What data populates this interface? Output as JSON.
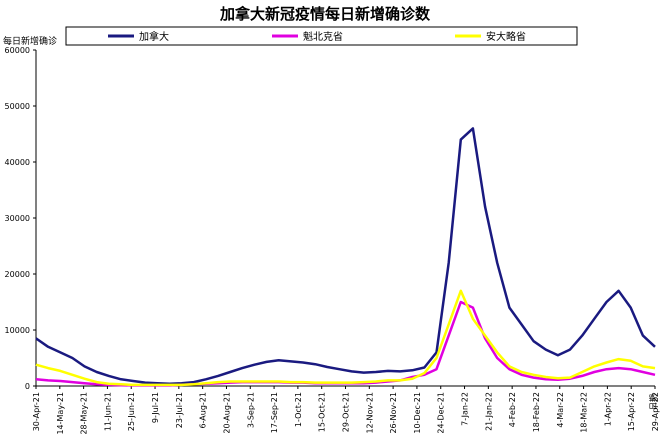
{
  "chart_data": {
    "type": "line",
    "title": "加拿大新冠疫情每日新增确诊数",
    "ylabel": "每日新增确诊",
    "xlabel": "日期",
    "ylim": [
      0,
      60000
    ],
    "yticks": [
      0,
      10000,
      20000,
      30000,
      40000,
      50000,
      60000
    ],
    "ytick_labels": [
      "0",
      "10000",
      "20000",
      "30000",
      "40000",
      "50000",
      "60000"
    ],
    "x_start": "2021-04-30",
    "x_end": "2022-04-29",
    "xtick_labels": [
      "30-Apr-21",
      "14-May-21",
      "28-May-21",
      "11-Jun-21",
      "25-Jun-21",
      "9-Jul-21",
      "23-Jul-21",
      "6-Aug-21",
      "20-Aug-21",
      "3-Sep-21",
      "17-Sep-21",
      "1-Oct-21",
      "15-Oct-21",
      "29-Oct-21",
      "12-Nov-21",
      "26-Nov-21",
      "10-Dec-21",
      "24-Dec-21",
      "7-Jan-22",
      "21-Jan-22",
      "4-Feb-22",
      "18-Feb-22",
      "4-Mar-22",
      "18-Mar-22",
      "1-Apr-22",
      "15-Apr-22",
      "29-Apr-22"
    ],
    "grid": false,
    "legend_position": "top",
    "series": [
      {
        "name": "加拿大",
        "color": "#1a1a80",
        "values": [
          8500,
          7000,
          6000,
          5000,
          3500,
          2500,
          1800,
          1200,
          900,
          600,
          500,
          400,
          500,
          700,
          1200,
          1800,
          2500,
          3200,
          3800,
          4300,
          4600,
          4400,
          4200,
          3900,
          3400,
          3000,
          2600,
          2400,
          2500,
          2700,
          2600,
          2800,
          3300,
          6000,
          22000,
          44000,
          46000,
          32000,
          22000,
          14000,
          11000,
          8000,
          6500,
          5500,
          6500,
          9000,
          12000,
          15000,
          17000,
          14000,
          9000,
          7000
        ]
      },
      {
        "name": "魁北克省",
        "color": "#e000e0",
        "values": [
          1200,
          1000,
          900,
          700,
          500,
          300,
          200,
          150,
          100,
          100,
          100,
          100,
          200,
          300,
          400,
          500,
          600,
          700,
          700,
          700,
          700,
          600,
          600,
          500,
          500,
          500,
          500,
          500,
          600,
          800,
          1000,
          1600,
          2000,
          3000,
          9000,
          15000,
          14000,
          8500,
          5000,
          3000,
          2000,
          1500,
          1200,
          1100,
          1300,
          1800,
          2500,
          3000,
          3200,
          3000,
          2500,
          2000
        ]
      },
      {
        "name": "安大略省",
        "color": "#ffff00",
        "values": [
          3800,
          3200,
          2700,
          2000,
          1300,
          700,
          400,
          300,
          200,
          200,
          200,
          200,
          200,
          300,
          500,
          700,
          800,
          800,
          800,
          800,
          800,
          700,
          700,
          600,
          600,
          600,
          600,
          700,
          800,
          1000,
          1000,
          1300,
          2300,
          5000,
          11000,
          17000,
          12000,
          9000,
          6000,
          3500,
          2500,
          2000,
          1600,
          1400,
          1500,
          2500,
          3500,
          4200,
          4800,
          4500,
          3500,
          3200
        ]
      }
    ]
  }
}
